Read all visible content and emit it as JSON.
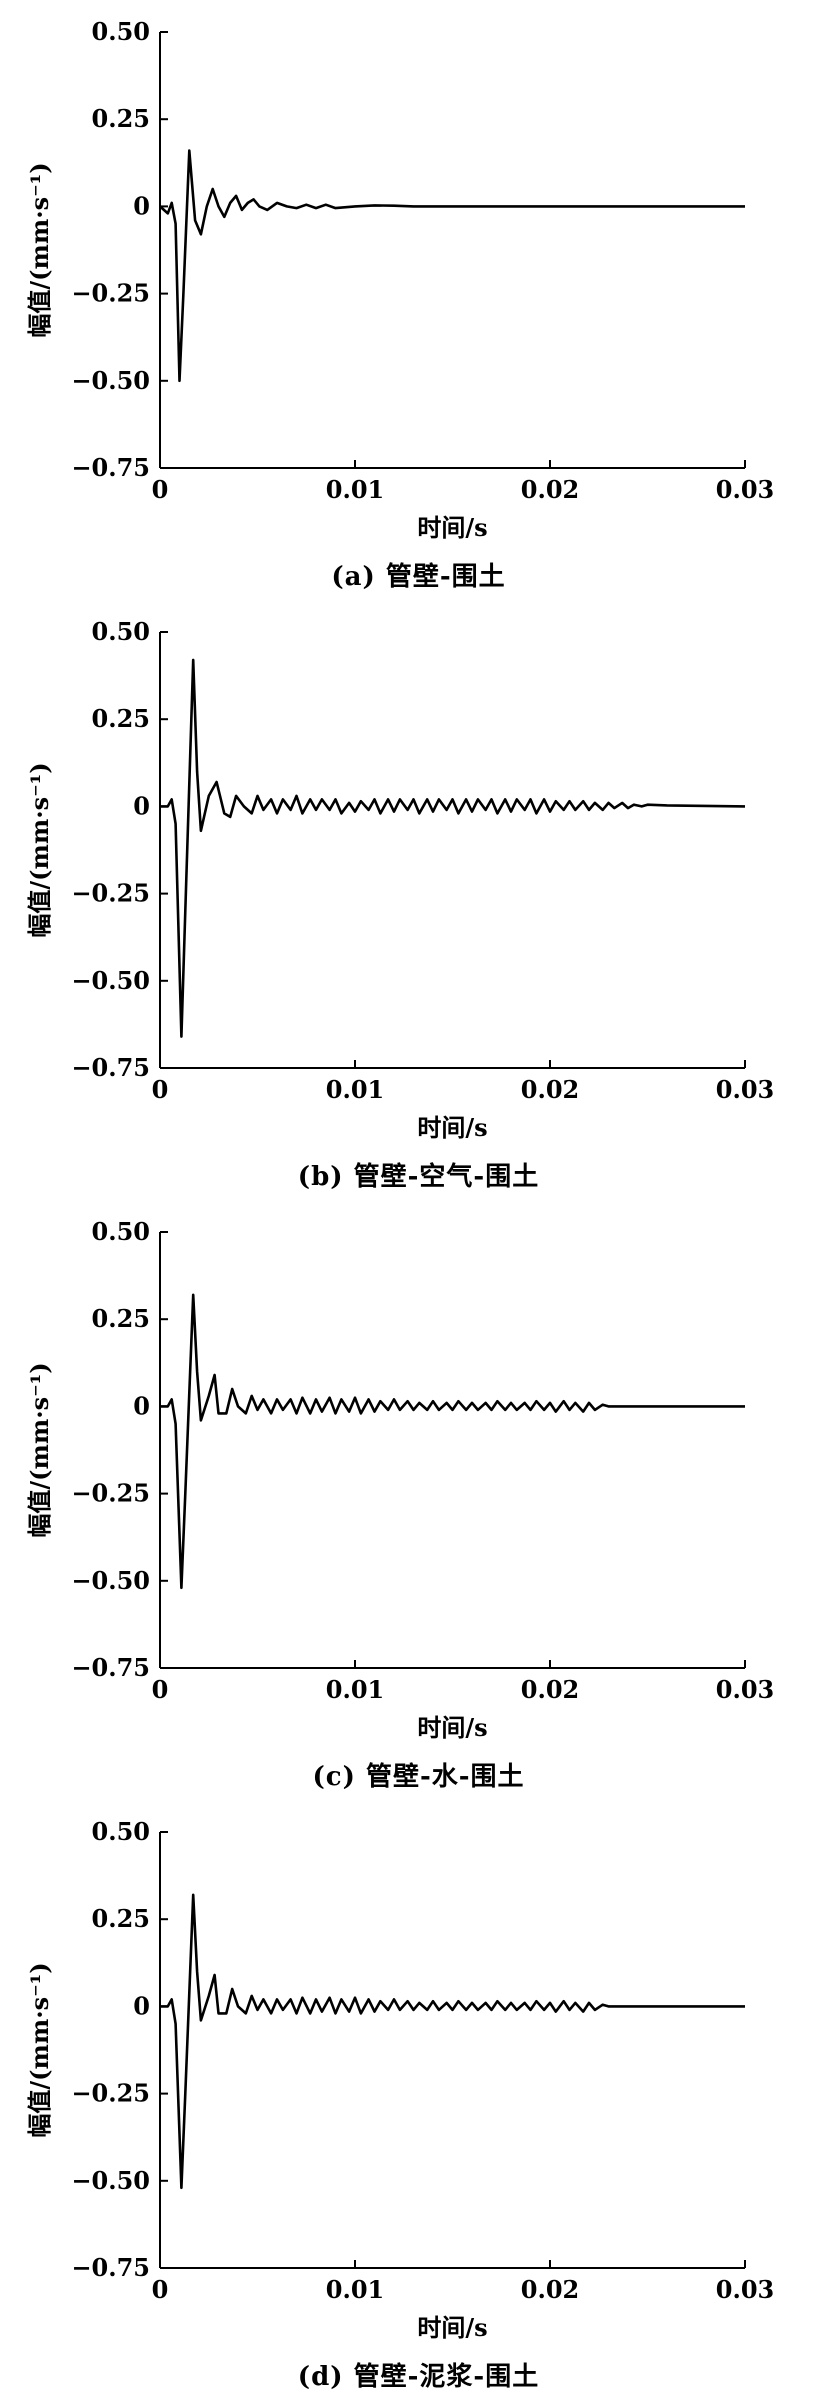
{
  "chart_data": [
    {
      "type": "line",
      "caption": "(a) 管壁-围土",
      "xlabel": "时间/s",
      "ylabel": "幅值/(mm·s⁻¹)",
      "xlim": [
        0,
        0.03
      ],
      "ylim": [
        -0.75,
        0.5
      ],
      "xticks": [
        "0",
        "0.01",
        "0.02",
        "0.03"
      ],
      "yticks": [
        "0.50",
        "0.25",
        "0",
        "−0.25",
        "−0.50",
        "−0.75"
      ],
      "grid": false,
      "series": [
        {
          "x": [
            0,
            0.0004,
            0.0006,
            0.0008,
            0.001,
            0.0012,
            0.0015,
            0.0018,
            0.0021,
            0.0024,
            0.0027,
            0.003,
            0.0033,
            0.0036,
            0.0039,
            0.0042,
            0.0045,
            0.0048,
            0.0051,
            0.0055,
            0.006,
            0.0065,
            0.007,
            0.0075,
            0.008,
            0.0085,
            0.009,
            0.01,
            0.011,
            0.012,
            0.013,
            0.015,
            0.02,
            0.025,
            0.03
          ],
          "y": [
            0,
            -0.02,
            0.01,
            -0.05,
            -0.5,
            -0.25,
            0.16,
            -0.04,
            -0.08,
            0.0,
            0.05,
            0.0,
            -0.03,
            0.01,
            0.03,
            -0.01,
            0.01,
            0.02,
            0.0,
            -0.01,
            0.01,
            0.0,
            -0.005,
            0.005,
            -0.005,
            0.005,
            -0.005,
            0.0,
            0.003,
            0.002,
            0.0,
            0.0,
            0.0,
            0.0,
            0.0
          ]
        }
      ]
    },
    {
      "type": "line",
      "caption": "(b) 管壁-空气-围土",
      "xlabel": "时间/s",
      "ylabel": "幅值/(mm·s⁻¹)",
      "xlim": [
        0,
        0.03
      ],
      "ylim": [
        -0.75,
        0.5
      ],
      "xticks": [
        "0",
        "0.01",
        "0.02",
        "0.03"
      ],
      "yticks": [
        "0.50",
        "0.25",
        "0",
        "−0.25",
        "−0.50",
        "−0.75"
      ],
      "grid": false,
      "series": [
        {
          "x": [
            0,
            0.0004,
            0.0006,
            0.0008,
            0.0011,
            0.0013,
            0.0017,
            0.0019,
            0.0021,
            0.0025,
            0.0029,
            0.0033,
            0.0036,
            0.0039,
            0.0043,
            0.0047,
            0.005,
            0.0053,
            0.0057,
            0.006,
            0.0063,
            0.0067,
            0.007,
            0.0073,
            0.0077,
            0.008,
            0.0083,
            0.0087,
            0.009,
            0.0093,
            0.0097,
            0.01,
            0.0103,
            0.0107,
            0.011,
            0.0113,
            0.0117,
            0.012,
            0.0123,
            0.0127,
            0.013,
            0.0133,
            0.0137,
            0.014,
            0.0143,
            0.0147,
            0.015,
            0.0153,
            0.0157,
            0.016,
            0.0163,
            0.0167,
            0.017,
            0.0173,
            0.0177,
            0.018,
            0.0183,
            0.0187,
            0.019,
            0.0193,
            0.0197,
            0.02,
            0.0203,
            0.0207,
            0.021,
            0.0213,
            0.0217,
            0.022,
            0.0223,
            0.0227,
            0.023,
            0.0233,
            0.0237,
            0.024,
            0.0243,
            0.0247,
            0.025,
            0.026,
            0.03
          ],
          "y": [
            0,
            0.0,
            0.02,
            -0.05,
            -0.66,
            -0.3,
            0.42,
            0.1,
            -0.07,
            0.03,
            0.07,
            -0.02,
            -0.03,
            0.03,
            0.0,
            -0.02,
            0.03,
            -0.01,
            0.02,
            -0.02,
            0.02,
            -0.01,
            0.03,
            -0.02,
            0.02,
            -0.01,
            0.02,
            -0.01,
            0.02,
            -0.02,
            0.01,
            -0.015,
            0.015,
            -0.01,
            0.02,
            -0.02,
            0.02,
            -0.015,
            0.02,
            -0.01,
            0.02,
            -0.02,
            0.02,
            -0.015,
            0.02,
            -0.01,
            0.02,
            -0.02,
            0.02,
            -0.015,
            0.02,
            -0.01,
            0.02,
            -0.02,
            0.02,
            -0.015,
            0.02,
            -0.01,
            0.02,
            -0.02,
            0.02,
            -0.015,
            0.015,
            -0.01,
            0.015,
            -0.01,
            0.015,
            -0.01,
            0.01,
            -0.01,
            0.01,
            -0.005,
            0.01,
            -0.005,
            0.005,
            0.0,
            0.005,
            0.003,
            0.0
          ]
        }
      ]
    },
    {
      "type": "line",
      "caption": "(c) 管壁-水-围土",
      "xlabel": "时间/s",
      "ylabel": "幅值/(mm·s⁻¹)",
      "xlim": [
        0,
        0.03
      ],
      "ylim": [
        -0.75,
        0.5
      ],
      "xticks": [
        "0",
        "0.01",
        "0.02",
        "0.03"
      ],
      "yticks": [
        "0.50",
        "0.25",
        "0",
        "−0.25",
        "−0.50",
        "−0.75"
      ],
      "grid": false,
      "series": [
        {
          "x": [
            0,
            0.0004,
            0.0006,
            0.0008,
            0.0011,
            0.0013,
            0.0017,
            0.0019,
            0.0021,
            0.0025,
            0.0028,
            0.003,
            0.0034,
            0.0037,
            0.004,
            0.0044,
            0.0047,
            0.005,
            0.0053,
            0.0057,
            0.006,
            0.0063,
            0.0067,
            0.007,
            0.0073,
            0.0077,
            0.008,
            0.0083,
            0.0087,
            0.009,
            0.0093,
            0.0097,
            0.01,
            0.0103,
            0.0107,
            0.011,
            0.0113,
            0.0117,
            0.012,
            0.0123,
            0.0127,
            0.013,
            0.0133,
            0.0137,
            0.014,
            0.0143,
            0.0147,
            0.015,
            0.0153,
            0.0157,
            0.016,
            0.0163,
            0.0167,
            0.017,
            0.0173,
            0.0177,
            0.018,
            0.0183,
            0.0187,
            0.019,
            0.0193,
            0.0197,
            0.02,
            0.0203,
            0.0207,
            0.021,
            0.0213,
            0.0217,
            0.022,
            0.0223,
            0.0227,
            0.023,
            0.03
          ],
          "y": [
            0,
            0.0,
            0.02,
            -0.05,
            -0.52,
            -0.25,
            0.32,
            0.1,
            -0.04,
            0.03,
            0.09,
            -0.02,
            -0.02,
            0.05,
            0.0,
            -0.02,
            0.03,
            -0.01,
            0.02,
            -0.02,
            0.02,
            -0.01,
            0.02,
            -0.02,
            0.025,
            -0.02,
            0.02,
            -0.015,
            0.025,
            -0.02,
            0.02,
            -0.015,
            0.025,
            -0.02,
            0.02,
            -0.015,
            0.015,
            -0.01,
            0.02,
            -0.01,
            0.015,
            -0.01,
            0.01,
            -0.01,
            0.015,
            -0.01,
            0.01,
            -0.01,
            0.015,
            -0.01,
            0.01,
            -0.01,
            0.01,
            -0.01,
            0.015,
            -0.01,
            0.01,
            -0.01,
            0.01,
            -0.01,
            0.015,
            -0.01,
            0.01,
            -0.015,
            0.015,
            -0.01,
            0.01,
            -0.015,
            0.01,
            -0.01,
            0.005,
            0.0,
            0.0
          ]
        }
      ]
    },
    {
      "type": "line",
      "caption": "(d) 管壁-泥浆-围土",
      "xlabel": "时间/s",
      "ylabel": "幅值/(mm·s⁻¹)",
      "xlim": [
        0,
        0.03
      ],
      "ylim": [
        -0.75,
        0.5
      ],
      "xticks": [
        "0",
        "0.01",
        "0.02",
        "0.03"
      ],
      "yticks": [
        "0.50",
        "0.25",
        "0",
        "−0.25",
        "−0.50",
        "−0.75"
      ],
      "grid": false,
      "series": [
        {
          "x": [
            0,
            0.0004,
            0.0006,
            0.0008,
            0.0011,
            0.0013,
            0.0017,
            0.0019,
            0.0021,
            0.0025,
            0.0028,
            0.003,
            0.0034,
            0.0037,
            0.004,
            0.0044,
            0.0047,
            0.005,
            0.0053,
            0.0057,
            0.006,
            0.0063,
            0.0067,
            0.007,
            0.0073,
            0.0077,
            0.008,
            0.0083,
            0.0087,
            0.009,
            0.0093,
            0.0097,
            0.01,
            0.0103,
            0.0107,
            0.011,
            0.0113,
            0.0117,
            0.012,
            0.0123,
            0.0127,
            0.013,
            0.0133,
            0.0137,
            0.014,
            0.0143,
            0.0147,
            0.015,
            0.0153,
            0.0157,
            0.016,
            0.0163,
            0.0167,
            0.017,
            0.0173,
            0.0177,
            0.018,
            0.0183,
            0.0187,
            0.019,
            0.0193,
            0.0197,
            0.02,
            0.0203,
            0.0207,
            0.021,
            0.0213,
            0.0217,
            0.022,
            0.0223,
            0.0227,
            0.023,
            0.03
          ],
          "y": [
            0,
            0.0,
            0.02,
            -0.05,
            -0.52,
            -0.25,
            0.32,
            0.1,
            -0.04,
            0.03,
            0.09,
            -0.02,
            -0.02,
            0.05,
            0.0,
            -0.02,
            0.03,
            -0.01,
            0.02,
            -0.02,
            0.02,
            -0.01,
            0.02,
            -0.02,
            0.025,
            -0.02,
            0.02,
            -0.015,
            0.025,
            -0.02,
            0.02,
            -0.015,
            0.025,
            -0.02,
            0.02,
            -0.015,
            0.015,
            -0.01,
            0.02,
            -0.01,
            0.015,
            -0.01,
            0.01,
            -0.01,
            0.015,
            -0.01,
            0.01,
            -0.01,
            0.015,
            -0.01,
            0.01,
            -0.01,
            0.01,
            -0.01,
            0.015,
            -0.01,
            0.01,
            -0.01,
            0.01,
            -0.01,
            0.015,
            -0.01,
            0.01,
            -0.015,
            0.015,
            -0.01,
            0.01,
            -0.015,
            0.01,
            -0.01,
            0.005,
            0.0,
            0.0
          ]
        }
      ]
    }
  ]
}
